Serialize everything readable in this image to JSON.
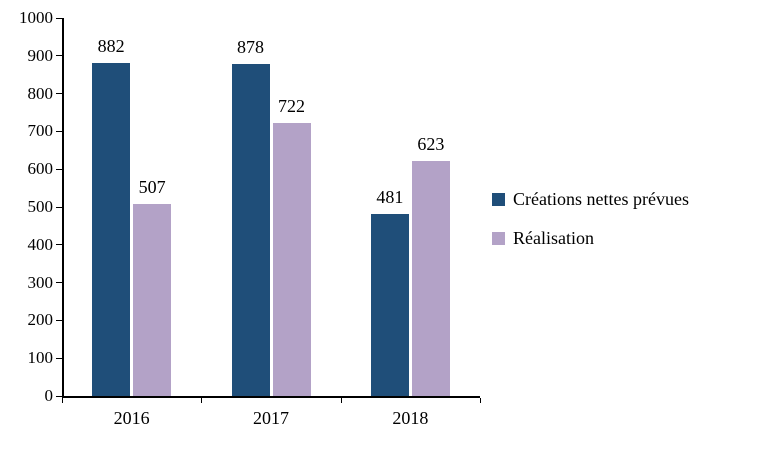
{
  "chart_data": {
    "type": "bar",
    "categories": [
      "2016",
      "2017",
      "2018"
    ],
    "series": [
      {
        "name": "Créations nettes prévues",
        "color": "#1F4E79",
        "values": [
          882,
          878,
          481
        ]
      },
      {
        "name": "Réalisation",
        "color": "#B3A2C7",
        "values": [
          507,
          722,
          623
        ]
      }
    ],
    "title": "",
    "xlabel": "",
    "ylabel": "",
    "ylim": [
      0,
      1000
    ],
    "ytick_step": 100,
    "grid": false,
    "legend_position": "right",
    "data_labels": true,
    "axis_color": "#000000",
    "text_color": "#000000"
  }
}
